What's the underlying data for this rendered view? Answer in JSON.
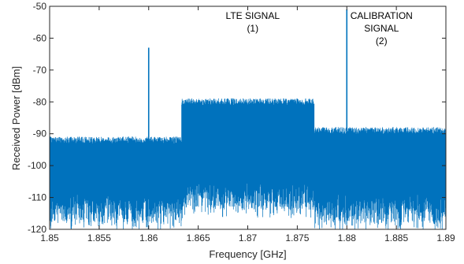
{
  "chart_data": {
    "type": "line",
    "title": "",
    "xlabel": "Frequency [GHz]",
    "ylabel": "Received Power [dBm]",
    "xlim": [
      1.85,
      1.89
    ],
    "ylim": [
      -120,
      -50
    ],
    "x_ticks": [
      "1.85",
      "1.855",
      "1.86",
      "1.865",
      "1.87",
      "1.875",
      "1.88",
      "1.885",
      "1.89"
    ],
    "y_ticks": [
      "-50",
      "-60",
      "-70",
      "-80",
      "-90",
      "-100",
      "-110",
      "-120"
    ],
    "grid": false,
    "series_color": "#0072BD",
    "annotations": [
      {
        "lines": [
          "LTE SIGNAL",
          "(1)"
        ],
        "x": 1.8705,
        "y": -54
      },
      {
        "lines": [
          "CALIBRATION",
          "SIGNAL",
          "(2)"
        ],
        "x": 1.8835,
        "y": -54
      }
    ],
    "spectrum_envelope": {
      "segments": [
        {
          "x_start": 1.85,
          "x_end": 1.8633,
          "upper_dbm": -92,
          "lower_dbm": -118
        },
        {
          "x_start": 1.8633,
          "x_end": 1.8767,
          "upper_dbm": -80,
          "lower_dbm": -114
        },
        {
          "x_start": 1.8767,
          "x_end": 1.89,
          "upper_dbm": -89,
          "lower_dbm": -118
        }
      ],
      "spurs": [
        {
          "x": 1.86,
          "peak_dbm": -63
        },
        {
          "x": 1.88,
          "peak_dbm": -51
        }
      ]
    }
  }
}
